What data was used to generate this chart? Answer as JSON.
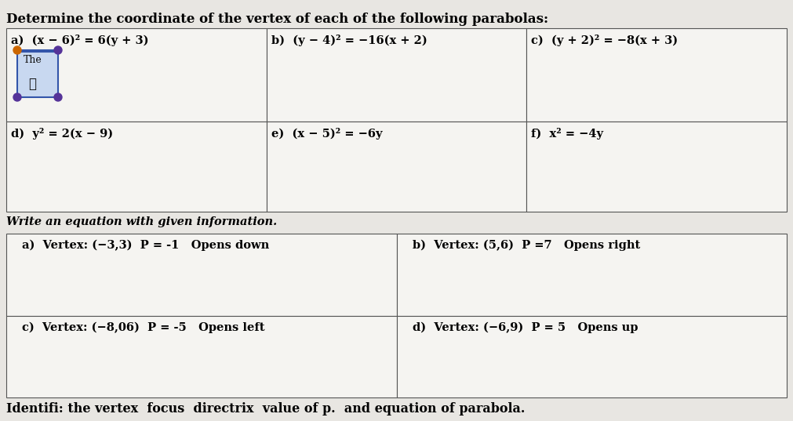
{
  "title": "Determine the coordinate of the vertex of each of the following parabolas:",
  "bottom_text": "Identifi: the vertex  focus  directrix  value of p.  and equation of parabola.",
  "section1_label": "Write an equation with given information.",
  "top_cells_row1": [
    "a)  (x − 6)² = 6(y + 3)",
    "b)  (y − 4)² = −16(x + 2)",
    "c)  (y + 2)² = −8(x + 3)"
  ],
  "top_cells_row2": [
    "d)  y² = 2(x − 9)",
    "e)  (x − 5)² = −6y",
    "f)  x² = −4y"
  ],
  "bottom_cells_row1": [
    "a)  Vertex: (−3,3)  P = -1   Opens down",
    "b)  Vertex: (5,6)  P =7   Opens right"
  ],
  "bottom_cells_row2": [
    "c)  Vertex: (−8,06)  P = -5   Opens left",
    "d)  Vertex: (−6,9)  P = 5   Opens up"
  ],
  "bg_color": "#e8e6e2",
  "cell_bg": "#f5f4f1",
  "border_color": "#555555",
  "font_size": 10.5,
  "title_font_size": 12,
  "figsize": [
    10.11,
    5.37
  ],
  "dpi": 100,
  "mini_box_color": "#3355aa",
  "mini_box_fill": "#c8d8f0",
  "mini_top_left_color": "#cc6600",
  "mini_other_color": "#553399"
}
